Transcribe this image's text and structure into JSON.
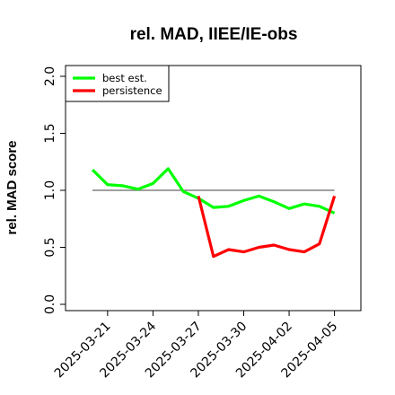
{
  "chart_data": {
    "type": "line",
    "title": "rel. MAD, IIEE/IE-obs",
    "xlabel": "",
    "ylabel": "rel. MAD score",
    "x": [
      "2025-03-20",
      "2025-03-21",
      "2025-03-22",
      "2025-03-23",
      "2025-03-24",
      "2025-03-25",
      "2025-03-26",
      "2025-03-27",
      "2025-03-28",
      "2025-03-29",
      "2025-03-30",
      "2025-03-31",
      "2025-04-01",
      "2025-04-02",
      "2025-04-03",
      "2025-04-04",
      "2025-04-05"
    ],
    "x_ticks": [
      "2025-03-21",
      "2025-03-24",
      "2025-03-27",
      "2025-03-30",
      "2025-04-02",
      "2025-04-05"
    ],
    "ylim": [
      -0.05,
      2.1
    ],
    "y_ticks": [
      "0.0",
      "0.5",
      "1.0",
      "1.5",
      "2.0"
    ],
    "y_tick_values": [
      0.0,
      0.5,
      1.0,
      1.5,
      2.0
    ],
    "reference_line": 1.0,
    "series": [
      {
        "name": "best est.",
        "color": "#00ff00",
        "values": [
          1.18,
          1.05,
          1.04,
          1.01,
          1.06,
          1.19,
          0.99,
          0.93,
          0.85,
          0.86,
          0.91,
          0.95,
          0.9,
          0.84,
          0.88,
          0.86,
          0.8
        ]
      },
      {
        "name": "persistence",
        "color": "#ff0000",
        "values": [
          null,
          null,
          null,
          null,
          null,
          null,
          null,
          0.95,
          0.42,
          0.48,
          0.46,
          0.5,
          0.52,
          0.48,
          0.46,
          0.53,
          0.95
        ]
      }
    ],
    "legend_position": "top-left",
    "grid": false
  }
}
